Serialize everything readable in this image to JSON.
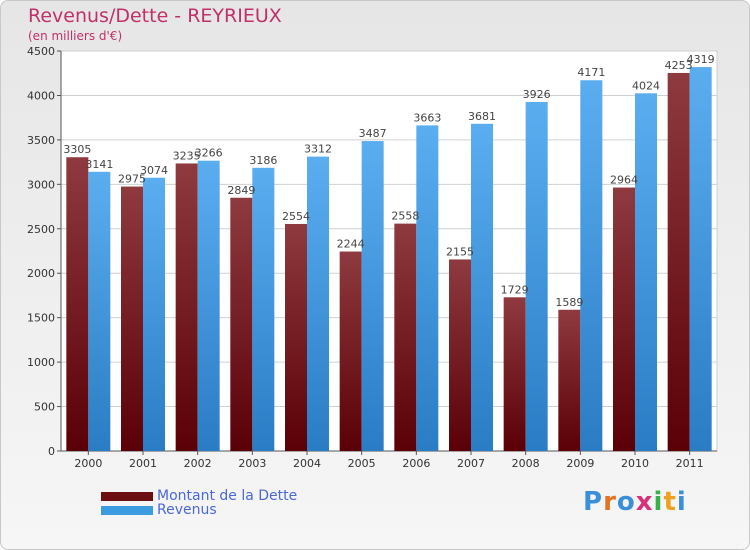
{
  "chart_data": {
    "type": "bar",
    "title": "Revenus/Dette - REYRIEUX",
    "subtitle": "(en milliers d'€)",
    "categories": [
      "2000",
      "2001",
      "2002",
      "2003",
      "2004",
      "2005",
      "2006",
      "2007",
      "2008",
      "2009",
      "2010",
      "2011"
    ],
    "series": [
      {
        "name": "Montant de la Dette",
        "color": "#6b0f12",
        "values": [
          3305,
          2975,
          3235,
          2849,
          2554,
          2244,
          2558,
          2155,
          1729,
          1589,
          2964,
          4253
        ]
      },
      {
        "name": "Revenus",
        "color": "#3d9be0",
        "values": [
          3141,
          3074,
          3266,
          3186,
          3312,
          3487,
          3663,
          3681,
          3926,
          4171,
          4024,
          4319
        ]
      }
    ],
    "ylim": [
      0,
      4500
    ],
    "yticks": [
      0,
      500,
      1000,
      1500,
      2000,
      2500,
      3000,
      3500,
      4000,
      4500
    ],
    "grid": true,
    "legend_position": "bottom-left"
  },
  "logo": {
    "letters": [
      "P",
      "r",
      "o",
      "x",
      "i",
      "t",
      "i"
    ],
    "colors": [
      "#3a8fd8",
      "#e6731f",
      "#3a8fd8",
      "#d8307a",
      "#3ab04a",
      "#f0a020",
      "#3a8fd8"
    ]
  }
}
